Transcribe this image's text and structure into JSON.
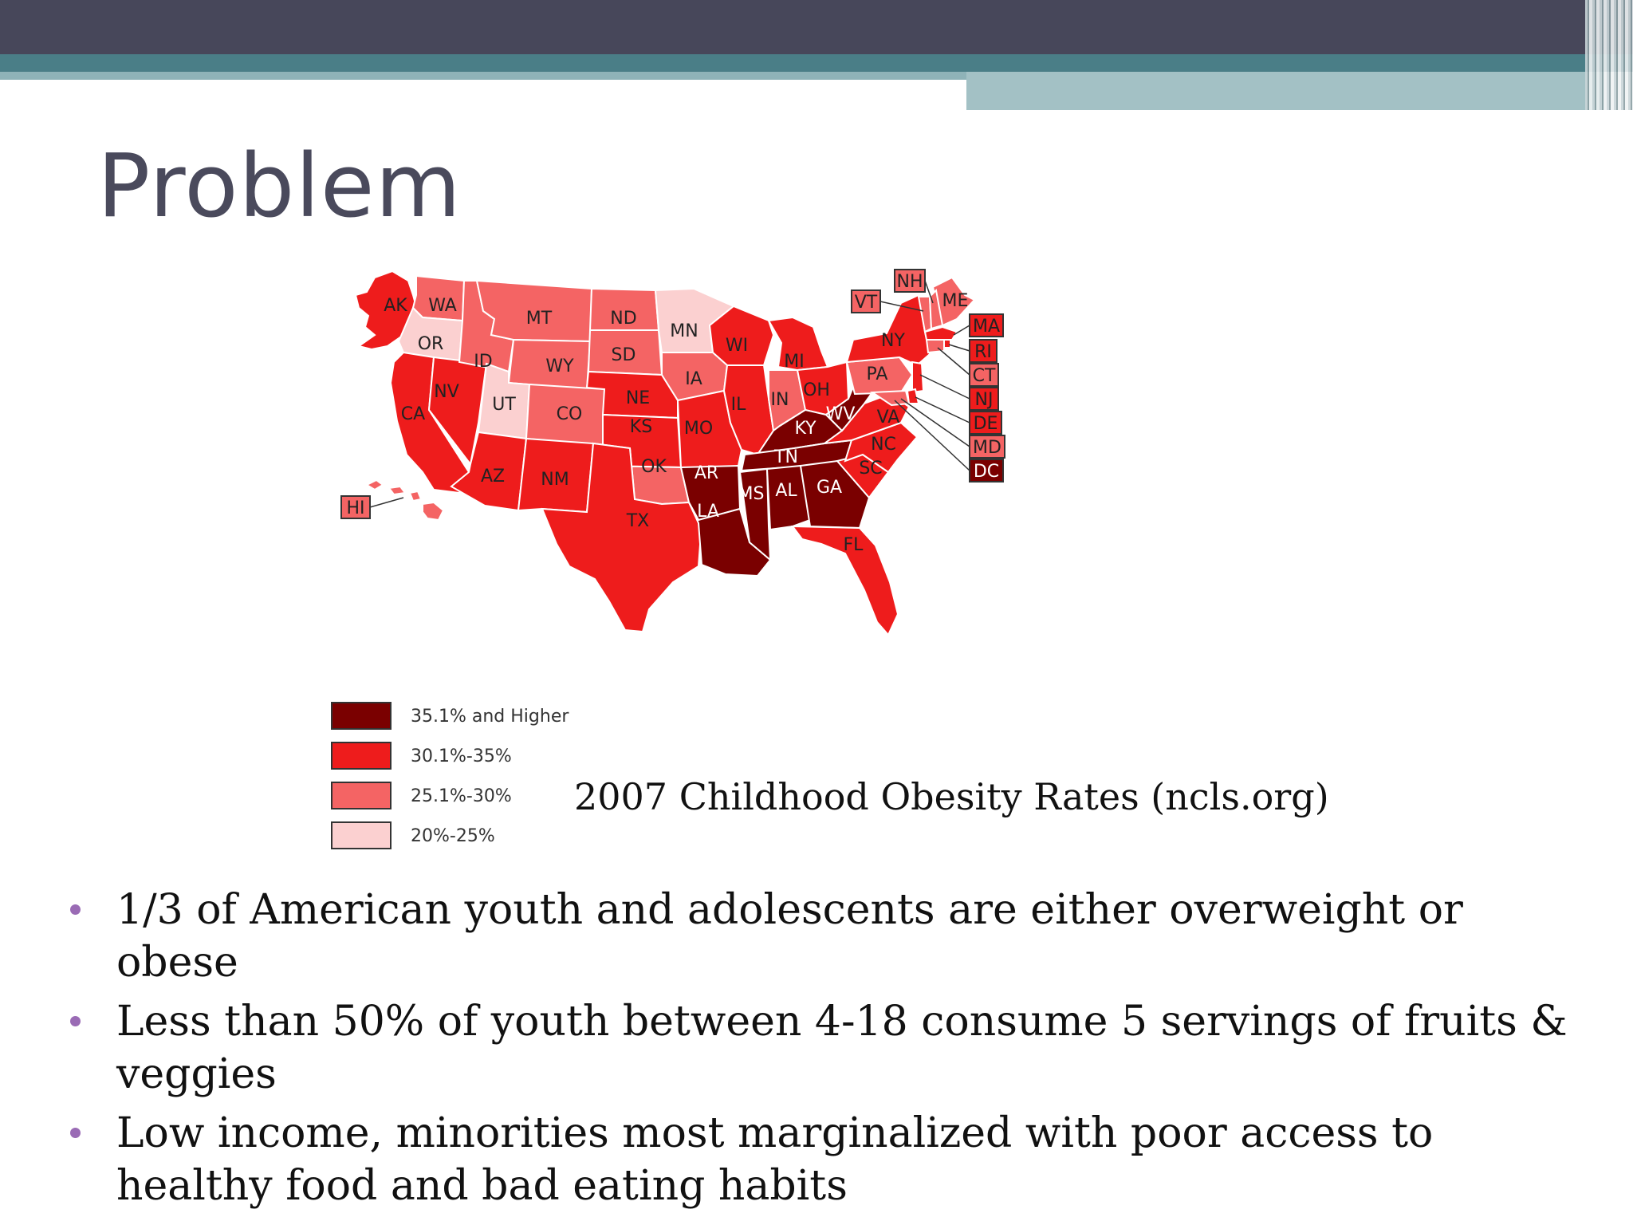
{
  "slide": {
    "title": "Problem"
  },
  "map": {
    "caption": "2007 Childhood Obesity Rates (ncls.org)",
    "colors": {
      "35.1+": "#7a0000",
      "30.1-35": "#ee1c1c",
      "25.1-30": "#f46464",
      "20-25": "#fbd0d0",
      "border": "#ffffff",
      "boxed_border": "#333333"
    },
    "legend": [
      {
        "label": "35.1% and Higher",
        "color": "#7a0000"
      },
      {
        "label": "30.1%-35%",
        "color": "#ee1c1c"
      },
      {
        "label": "25.1%-30%",
        "color": "#f46464"
      },
      {
        "label": "20%-25%",
        "color": "#fbd0d0"
      }
    ],
    "states": [
      {
        "abbr": "AK",
        "category": "30.1-35"
      },
      {
        "abbr": "HI",
        "category": "25.1-30"
      },
      {
        "abbr": "WA",
        "category": "25.1-30"
      },
      {
        "abbr": "OR",
        "category": "20-25"
      },
      {
        "abbr": "CA",
        "category": "30.1-35"
      },
      {
        "abbr": "NV",
        "category": "30.1-35"
      },
      {
        "abbr": "ID",
        "category": "25.1-30"
      },
      {
        "abbr": "MT",
        "category": "25.1-30"
      },
      {
        "abbr": "WY",
        "category": "25.1-30"
      },
      {
        "abbr": "UT",
        "category": "20-25"
      },
      {
        "abbr": "CO",
        "category": "25.1-30"
      },
      {
        "abbr": "AZ",
        "category": "30.1-35"
      },
      {
        "abbr": "NM",
        "category": "30.1-35"
      },
      {
        "abbr": "ND",
        "category": "25.1-30"
      },
      {
        "abbr": "SD",
        "category": "25.1-30"
      },
      {
        "abbr": "NE",
        "category": "30.1-35"
      },
      {
        "abbr": "KS",
        "category": "30.1-35"
      },
      {
        "abbr": "OK",
        "category": "25.1-30"
      },
      {
        "abbr": "TX",
        "category": "30.1-35"
      },
      {
        "abbr": "MN",
        "category": "20-25"
      },
      {
        "abbr": "IA",
        "category": "25.1-30"
      },
      {
        "abbr": "MO",
        "category": "30.1-35"
      },
      {
        "abbr": "AR",
        "category": "35.1+"
      },
      {
        "abbr": "LA",
        "category": "35.1+"
      },
      {
        "abbr": "WI",
        "category": "30.1-35"
      },
      {
        "abbr": "IL",
        "category": "30.1-35"
      },
      {
        "abbr": "MI",
        "category": "30.1-35"
      },
      {
        "abbr": "IN",
        "category": "25.1-30"
      },
      {
        "abbr": "OH",
        "category": "30.1-35"
      },
      {
        "abbr": "KY",
        "category": "35.1+"
      },
      {
        "abbr": "TN",
        "category": "35.1+"
      },
      {
        "abbr": "MS",
        "category": "35.1+"
      },
      {
        "abbr": "AL",
        "category": "35.1+"
      },
      {
        "abbr": "GA",
        "category": "35.1+"
      },
      {
        "abbr": "FL",
        "category": "30.1-35"
      },
      {
        "abbr": "SC",
        "category": "30.1-35"
      },
      {
        "abbr": "NC",
        "category": "30.1-35"
      },
      {
        "abbr": "VA",
        "category": "30.1-35"
      },
      {
        "abbr": "WV",
        "category": "35.1+"
      },
      {
        "abbr": "PA",
        "category": "25.1-30"
      },
      {
        "abbr": "NY",
        "category": "30.1-35"
      },
      {
        "abbr": "ME",
        "category": "25.1-30"
      },
      {
        "abbr": "VT",
        "category": "25.1-30"
      },
      {
        "abbr": "NH",
        "category": "25.1-30"
      },
      {
        "abbr": "MA",
        "category": "30.1-35"
      },
      {
        "abbr": "RI",
        "category": "30.1-35"
      },
      {
        "abbr": "CT",
        "category": "25.1-30"
      },
      {
        "abbr": "NJ",
        "category": "30.1-35"
      },
      {
        "abbr": "DE",
        "category": "30.1-35"
      },
      {
        "abbr": "MD",
        "category": "25.1-30"
      },
      {
        "abbr": "DC",
        "category": "35.1+"
      }
    ]
  },
  "bullets": [
    "1/3 of American youth and adolescents are either overweight or obese",
    "Less than 50% of youth between 4-18 consume 5 servings of fruits & veggies",
    "Low income, minorities most marginalized with poor access to healthy food and bad eating habits"
  ]
}
